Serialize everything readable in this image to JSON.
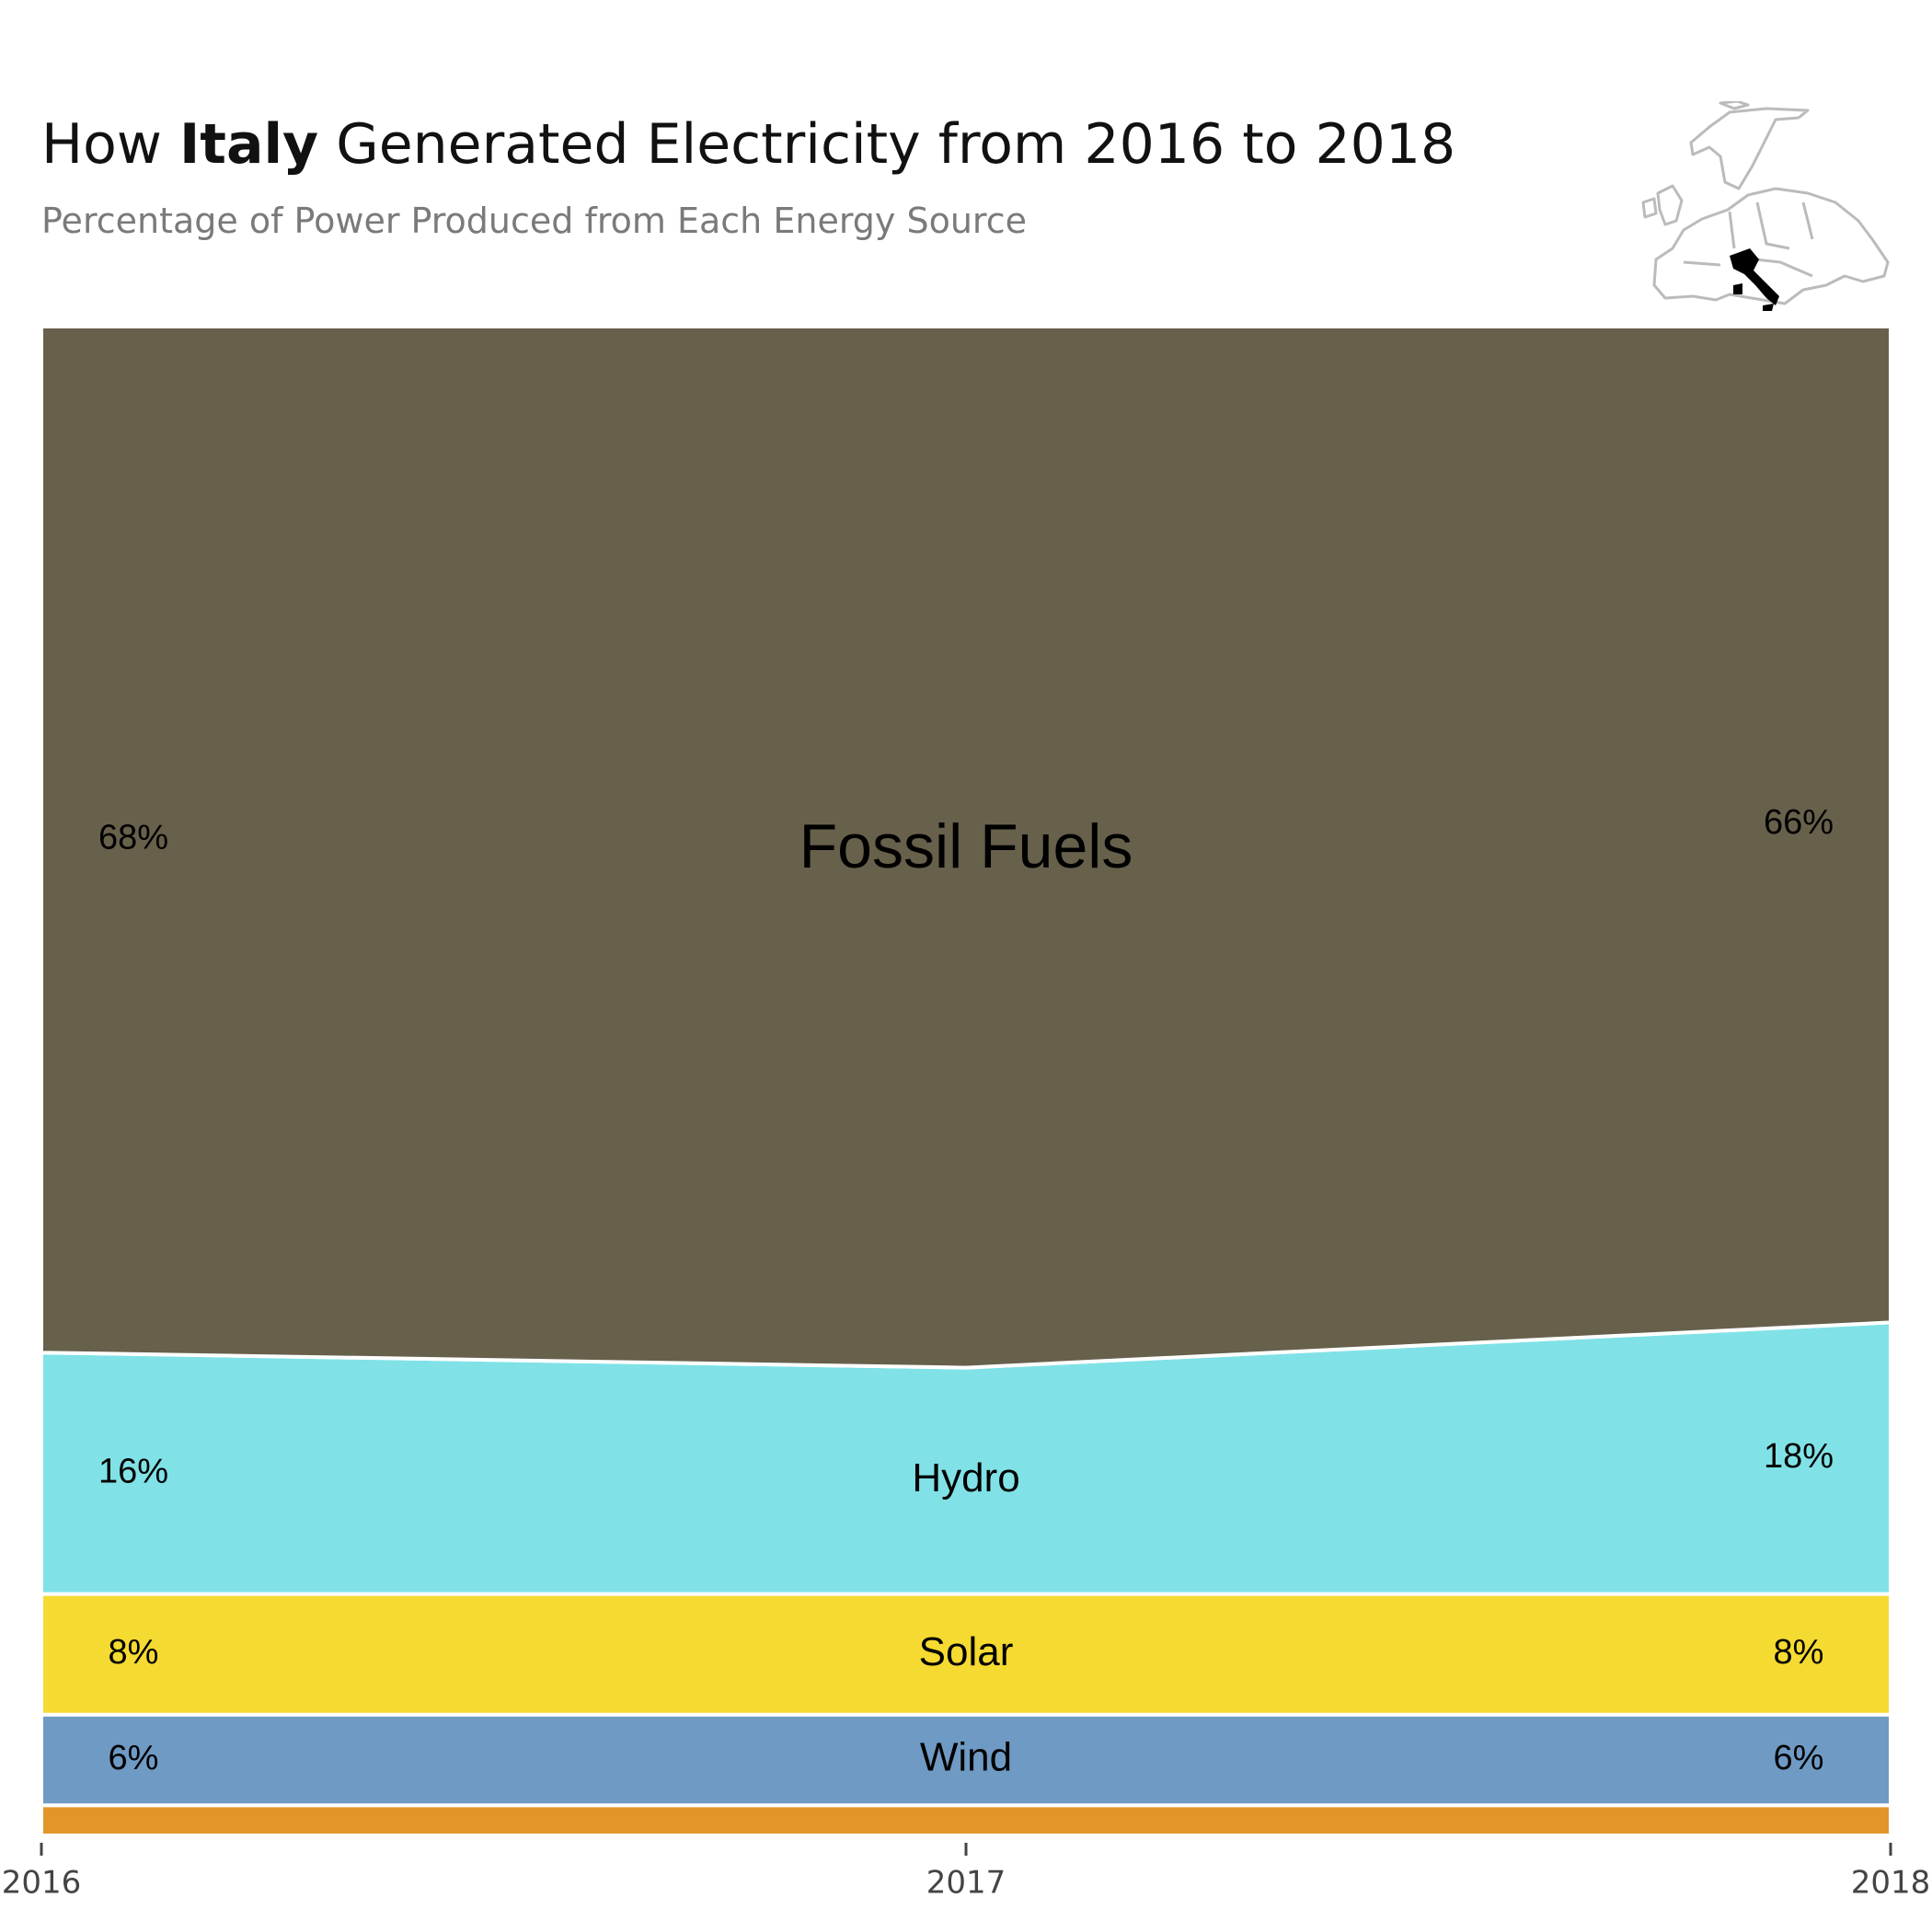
{
  "header": {
    "title_before": "How ",
    "title_country": "Italy",
    "title_after": " Generated Electricity from 2016 to 2018",
    "subtitle": "Percentage of Power Produced from Each Energy Source"
  },
  "chart_data": {
    "type": "area",
    "title": "How Italy Generated Electricity from 2016 to 2018",
    "subtitle": "Percentage of Power Produced from Each Energy Source",
    "x": [
      "2016",
      "2017",
      "2018"
    ],
    "ylim": [
      0,
      100
    ],
    "stacked": true,
    "grid": false,
    "series": [
      {
        "name": "",
        "values": [
          2,
          2,
          2
        ],
        "color": "#E3952A"
      },
      {
        "name": "Wind",
        "values": [
          6,
          6,
          6
        ],
        "color": "#6F9AC4",
        "label_left": "6%",
        "label_right": "6%"
      },
      {
        "name": "Solar",
        "values": [
          8,
          8,
          8
        ],
        "color": "#F5DA31",
        "label_left": "8%",
        "label_right": "8%"
      },
      {
        "name": "Hydro",
        "values": [
          16,
          15,
          18
        ],
        "color": "#80E2E7",
        "label_left": "16%",
        "label_right": "18%"
      },
      {
        "name": "Fossil Fuels",
        "values": [
          68,
          69,
          66
        ],
        "color": "#67604B",
        "label_left": "68%",
        "label_right": "66%"
      }
    ]
  },
  "map": {
    "highlight": "Italy",
    "highlight_color": "#000000",
    "outline_color": "#bbbbbb"
  }
}
